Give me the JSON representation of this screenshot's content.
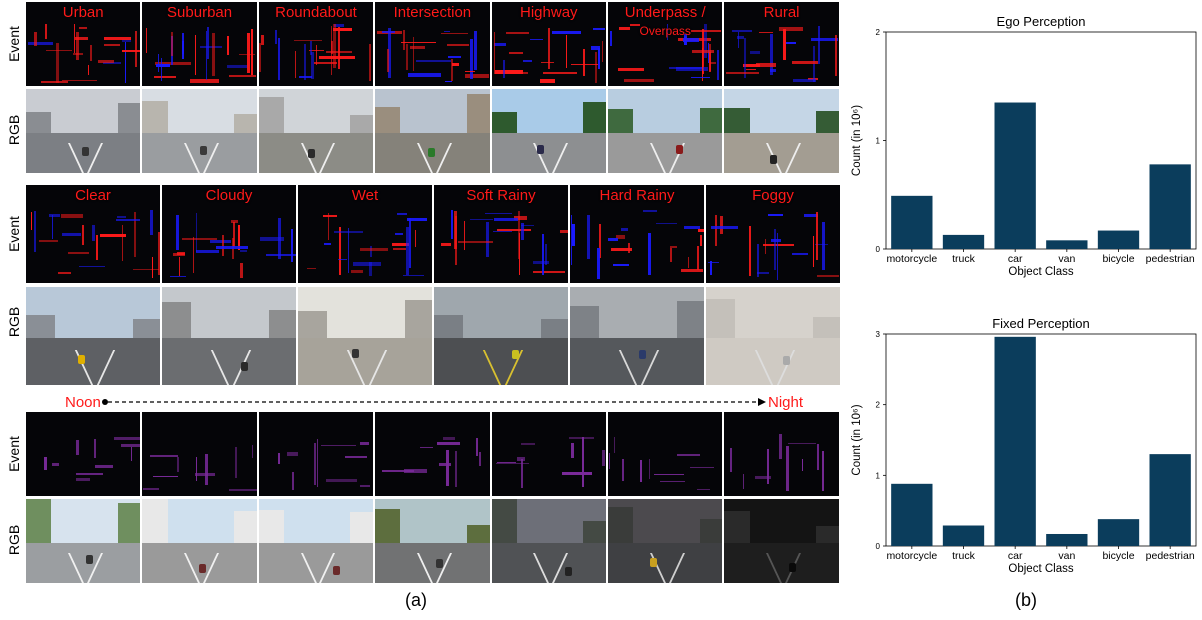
{
  "panel_a": {
    "row_labels": {
      "event": "Event",
      "rgb": "RGB"
    },
    "scenes": [
      "Urban",
      "Suburban",
      "Roundabout",
      "Intersection",
      "Highway",
      "Underpass /\nOverpass",
      "Rural"
    ],
    "weathers": [
      "Clear",
      "Cloudy",
      "Wet",
      "Soft Rainy",
      "Hard Rainy",
      "Foggy"
    ],
    "time_of_day": {
      "start": "Noon",
      "end": "Night"
    },
    "caption": "(a)"
  },
  "panel_b": {
    "caption": "(b)"
  },
  "colors": {
    "bar": "#0b3d5c",
    "event_red": "#ff1a1a",
    "event_blue": "#1a1aff",
    "caption_red": "#ff1a1a"
  },
  "chart_data": [
    {
      "type": "bar",
      "title": "Ego Perception",
      "xlabel": "Object Class",
      "ylabel": "Count (in 10⁶)",
      "categories": [
        "motorcycle",
        "truck",
        "car",
        "van",
        "bicycle",
        "pedestrian"
      ],
      "values": [
        0.49,
        0.13,
        1.35,
        0.08,
        0.17,
        0.78
      ],
      "ylim": [
        0,
        2
      ],
      "yticks": [
        0,
        1,
        2
      ],
      "grid": false
    },
    {
      "type": "bar",
      "title": "Fixed Perception",
      "xlabel": "Object Class",
      "ylabel": "Count (in 10⁶)",
      "categories": [
        "motorcycle",
        "truck",
        "car",
        "van",
        "bicycle",
        "pedestrian"
      ],
      "values": [
        0.88,
        0.29,
        2.96,
        0.17,
        0.38,
        1.3
      ],
      "ylim": [
        0,
        3
      ],
      "yticks": [
        0,
        1,
        2,
        3
      ],
      "grid": false
    }
  ]
}
